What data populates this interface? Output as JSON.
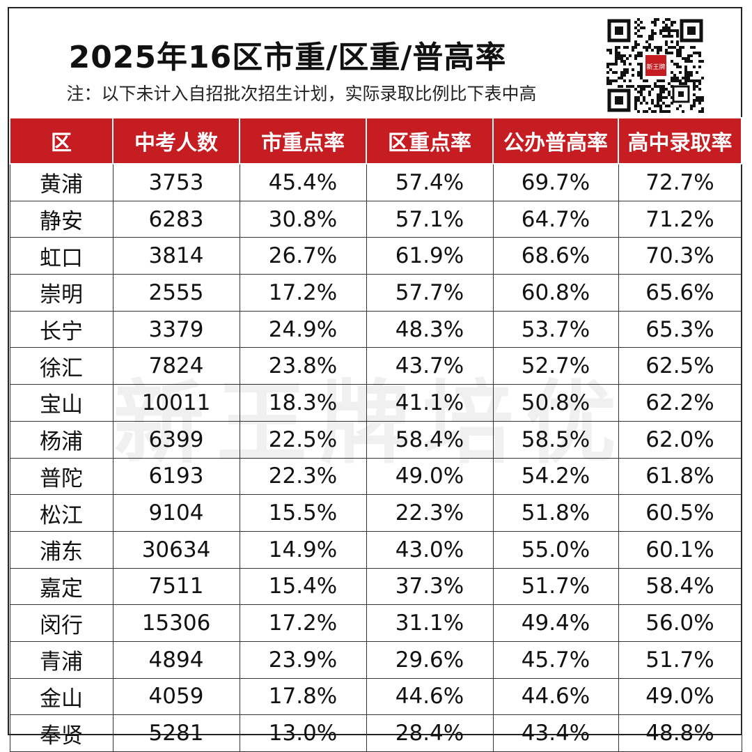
{
  "header": {
    "title": "2025年16区市重/区重/普高率",
    "note": "注：以下未计入自招批次招生计划，实际录取比例比下表中高",
    "qr_label": "新王牌"
  },
  "watermark": "新王牌培优",
  "table": {
    "columns": [
      "区",
      "中考人数",
      "市重点率",
      "区重点率",
      "公办普高率",
      "高中录取率"
    ],
    "rows": [
      [
        "黄浦",
        "3753",
        "45.4%",
        "57.4%",
        "69.7%",
        "72.7%"
      ],
      [
        "静安",
        "6283",
        "30.8%",
        "57.1%",
        "64.7%",
        "71.2%"
      ],
      [
        "虹口",
        "3814",
        "26.7%",
        "61.9%",
        "68.6%",
        "70.3%"
      ],
      [
        "崇明",
        "2555",
        "17.2%",
        "57.7%",
        "60.8%",
        "65.6%"
      ],
      [
        "长宁",
        "3379",
        "24.9%",
        "48.3%",
        "53.7%",
        "65.3%"
      ],
      [
        "徐汇",
        "7824",
        "23.8%",
        "43.7%",
        "52.7%",
        "62.5%"
      ],
      [
        "宝山",
        "10011",
        "18.3%",
        "41.1%",
        "50.8%",
        "62.2%"
      ],
      [
        "杨浦",
        "6399",
        "22.5%",
        "58.4%",
        "58.5%",
        "62.0%"
      ],
      [
        "普陀",
        "6193",
        "22.3%",
        "49.0%",
        "54.2%",
        "61.8%"
      ],
      [
        "松江",
        "9104",
        "15.5%",
        "22.3%",
        "51.8%",
        "60.5%"
      ],
      [
        "浦东",
        "30634",
        "14.9%",
        "43.0%",
        "55.0%",
        "60.1%"
      ],
      [
        "嘉定",
        "7511",
        "15.4%",
        "37.3%",
        "51.7%",
        "58.4%"
      ],
      [
        "闵行",
        "15306",
        "17.2%",
        "31.1%",
        "49.4%",
        "56.0%"
      ],
      [
        "青浦",
        "4894",
        "23.9%",
        "29.6%",
        "45.7%",
        "51.7%"
      ],
      [
        "金山",
        "4059",
        "17.8%",
        "44.6%",
        "44.6%",
        "49.0%"
      ],
      [
        "奉贤",
        "5281",
        "13.0%",
        "28.4%",
        "43.4%",
        "48.8%"
      ]
    ]
  },
  "colors": {
    "header_bg": "#c51d22",
    "header_text": "#ffffff"
  }
}
